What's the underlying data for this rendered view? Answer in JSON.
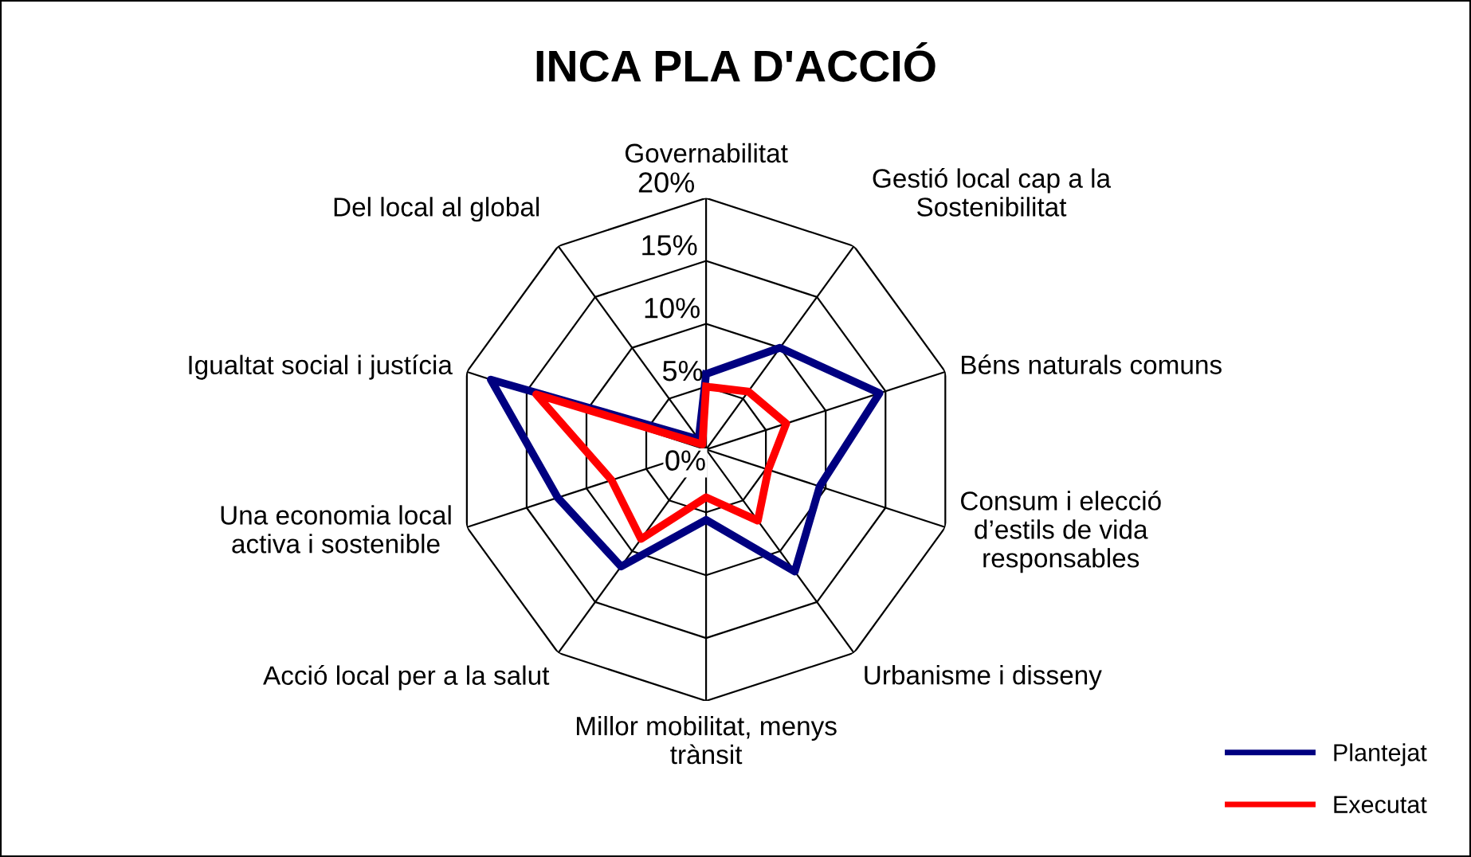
{
  "chart_data": {
    "type": "radar",
    "title": "INCA PLA D'ACCIÓ",
    "categories": [
      "Governabilitat",
      "Gestió local cap a la\nSostenibilitat",
      "Béns naturals comuns",
      "Consum i elecció\nd’estils de vida\nresponsables",
      "Urbanisme i disseny",
      "Millor mobilitat, menys\ntrànsit",
      "Acció local per a la salut",
      "Una economia local\nactiva i sostenible",
      "Igualtat social i justícia",
      "Del local al global"
    ],
    "series": [
      {
        "name": "Plantejat",
        "color": "#000080",
        "values": [
          6,
          10,
          14.5,
          9.5,
          12,
          5.6,
          11.5,
          12.4,
          18,
          1
        ]
      },
      {
        "name": "Executat",
        "color": "#ff0000",
        "values": [
          5,
          5.7,
          6.7,
          5.2,
          7,
          3.8,
          8.8,
          7.9,
          14.2,
          0.5
        ]
      }
    ],
    "ylim": [
      0,
      20
    ],
    "yticks": [
      {
        "value": 0,
        "label": "0%"
      },
      {
        "value": 5,
        "label": "5%"
      },
      {
        "value": 10,
        "label": "10%"
      },
      {
        "value": 15,
        "label": "15%"
      },
      {
        "value": 20,
        "label": "20%"
      }
    ],
    "grid": true,
    "legend": "bottom right",
    "line_style": "solid",
    "marker": "none"
  }
}
